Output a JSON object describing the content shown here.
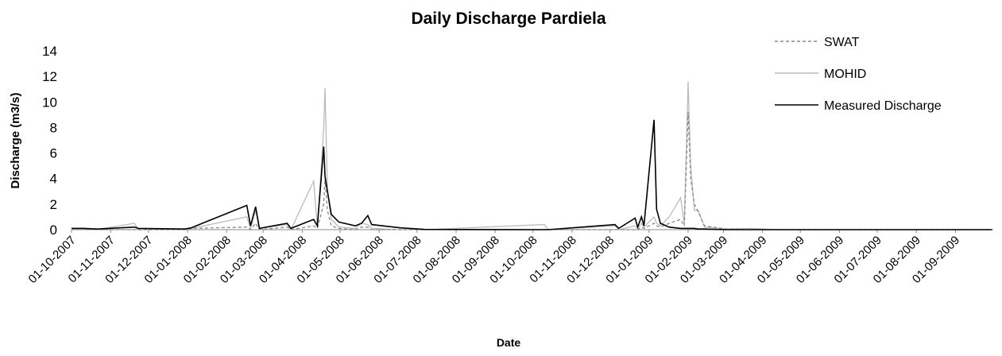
{
  "chart_data": {
    "type": "line",
    "title": "Daily Discharge Pardiela",
    "x_label": "Date",
    "y_label": "Discharge (m3/s)",
    "x": [
      "01-10-2007",
      "11-10-2007",
      "21-10-2007",
      "20-11-2007",
      "23-11-2007",
      "30-12-2007",
      "04-01-2008",
      "17-02-2008",
      "20-02-2008",
      "24-02-2008",
      "27-02-2008",
      "20-03-2008",
      "23-03-2008",
      "10-04-2008",
      "13-04-2008",
      "18-04-2008",
      "19-04-2008",
      "21-04-2008",
      "24-04-2008",
      "30-04-2008",
      "13-05-2008",
      "18-05-2008",
      "23-05-2008",
      "26-05-2008",
      "17-06-2008",
      "07-07-2008",
      "10-10-2008",
      "13-10-2008",
      "05-12-2008",
      "08-12-2008",
      "21-12-2008",
      "23-12-2008",
      "26-12-2008",
      "28-12-2008",
      "05-01-2009",
      "07-01-2009",
      "10-01-2009",
      "17-01-2009",
      "26-01-2009",
      "29-01-2009",
      "01-02-2009",
      "03-02-2009",
      "06-02-2009",
      "09-02-2009",
      "14-02-2009",
      "03-03-2009",
      "23-03-2009",
      "12-04-2009",
      "30-09-2009"
    ],
    "series": [
      {
        "name": "SWAT",
        "color": "#888888",
        "dashed": true,
        "values": [
          0.1,
          0.1,
          0,
          0,
          0,
          0,
          0.1,
          0.2,
          0,
          0.5,
          0,
          0.2,
          0,
          0.3,
          0.1,
          2.0,
          4.0,
          1.5,
          0.3,
          0.1,
          0,
          0.2,
          0.2,
          0,
          0,
          0,
          0,
          0,
          0,
          0,
          0,
          0,
          0.2,
          0.1,
          0.5,
          0.3,
          0.2,
          0.5,
          0.8,
          0.3,
          9.2,
          4.0,
          2.0,
          1.4,
          0.3,
          0.05,
          0,
          0,
          0
        ]
      },
      {
        "name": "MOHID",
        "color": "#bbbbbb",
        "dashed": false,
        "values": [
          0.1,
          0.1,
          0,
          0.5,
          0,
          0,
          0.1,
          1.0,
          0.1,
          1.5,
          0.1,
          0.4,
          0,
          3.8,
          0.2,
          8.0,
          11.1,
          3.0,
          0.8,
          0.2,
          0.1,
          0.5,
          0.4,
          0.1,
          0,
          0,
          0.4,
          0,
          0.3,
          0,
          0.3,
          0.1,
          0.5,
          0.2,
          1.0,
          0.5,
          0.3,
          1.0,
          2.5,
          0.5,
          11.6,
          5.0,
          1.5,
          1.5,
          0.2,
          0.05,
          0.1,
          0,
          0
        ]
      },
      {
        "name": "Measured Discharge",
        "color": "#000000",
        "dashed": false,
        "values": [
          0.1,
          0.1,
          0.05,
          0.2,
          0.1,
          0.05,
          0.15,
          1.9,
          0.3,
          1.8,
          0.1,
          0.5,
          0.1,
          0.8,
          0.3,
          6.5,
          4.2,
          3.0,
          1.2,
          0.6,
          0.3,
          0.5,
          1.1,
          0.4,
          0.15,
          0.02,
          0,
          0,
          0.4,
          0.1,
          0.9,
          0.2,
          1.0,
          0.3,
          8.6,
          1.6,
          0.5,
          0.2,
          0.1,
          0.1,
          0.1,
          0.1,
          0.1,
          0.05,
          0.05,
          0,
          0,
          0,
          0
        ]
      }
    ],
    "xlim": [
      "01-10-2007",
      "01-10-2009"
    ],
    "xticks": [
      "01-10-2007",
      "01-11-2007",
      "01-12-2007",
      "01-01-2008",
      "01-02-2008",
      "01-03-2008",
      "01-04-2008",
      "01-05-2008",
      "01-06-2008",
      "01-07-2008",
      "01-08-2008",
      "01-09-2008",
      "01-10-2008",
      "01-11-2008",
      "01-12-2008",
      "01-01-2009",
      "01-02-2009",
      "01-03-2009",
      "01-04-2009",
      "01-05-2009",
      "01-06-2009",
      "01-07-2009",
      "01-08-2009",
      "01-09-2009"
    ],
    "ylim": [
      0,
      14
    ],
    "yticks": [
      0,
      2,
      4,
      6,
      8,
      10,
      12,
      14
    ],
    "grid": false,
    "legend": "top-right"
  }
}
